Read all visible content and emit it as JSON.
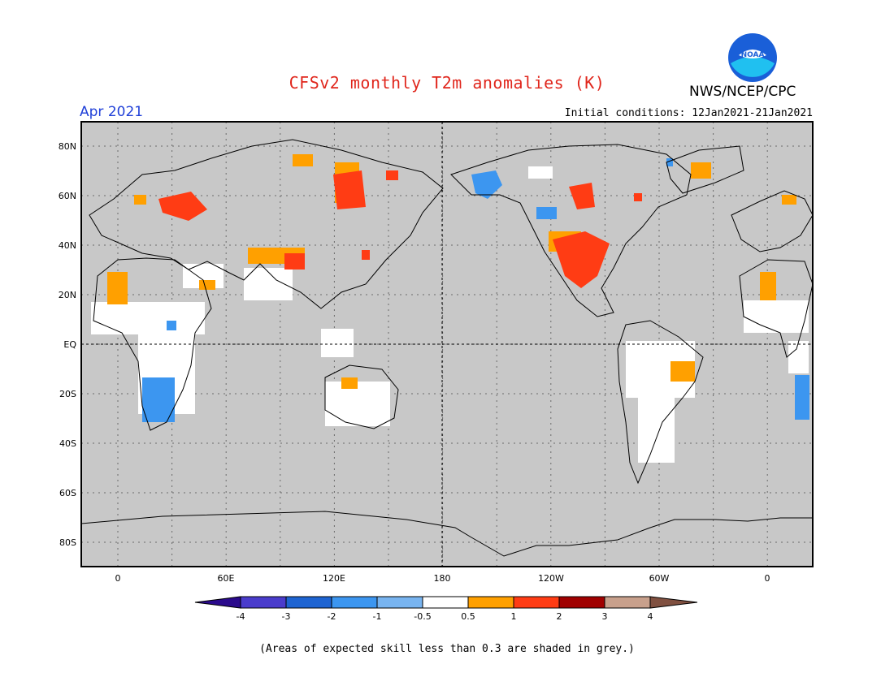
{
  "header": {
    "title": "CFSv2 monthly T2m anomalies (K)",
    "month": "Apr 2021",
    "initial_conditions": "Initial conditions: 12Jan2021-21Jan2021",
    "organization": "NWS/NCEP/CPC",
    "logo_text": "NOAA"
  },
  "map": {
    "background_color": "#c8c8c8",
    "lat_labels": [
      "80N",
      "60N",
      "40N",
      "20N",
      "EQ",
      "20S",
      "40S",
      "60S",
      "80S"
    ],
    "lon_labels": [
      "0",
      "60E",
      "120E",
      "180",
      "120W",
      "60W",
      "0"
    ]
  },
  "legend": {
    "labels": [
      "-4",
      "-3",
      "-2",
      "-1",
      "-0.5",
      "0.5",
      "1",
      "2",
      "3",
      "4"
    ],
    "colors": [
      "#2a0a8c",
      "#4a3ccc",
      "#1e64d2",
      "#3c96f0",
      "#78b4f0",
      "#ffffff",
      "#ffa000",
      "#ff3c14",
      "#a00000",
      "#c8a08c",
      "#805040"
    ]
  },
  "footer": {
    "note": "(Areas of expected skill less than 0.3 are shaded in grey.)"
  }
}
